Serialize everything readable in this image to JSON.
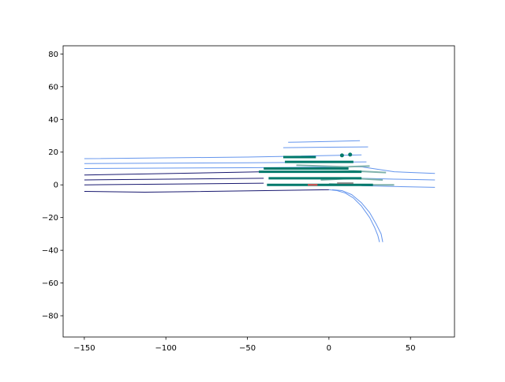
{
  "chart_data": {
    "type": "line",
    "xlim": [
      -163,
      77
    ],
    "ylim": [
      -93,
      85
    ],
    "xticks": [
      {
        "value": -150,
        "label": "−150"
      },
      {
        "value": -100,
        "label": "−100"
      },
      {
        "value": -50,
        "label": "−50"
      },
      0,
      50
    ],
    "yticks": [
      {
        "value": -80,
        "label": "−80"
      },
      {
        "value": -60,
        "label": "−60"
      },
      {
        "value": -40,
        "label": "−40"
      },
      {
        "value": -20,
        "label": "−20"
      },
      0,
      20,
      40,
      60,
      80
    ],
    "series": [
      {
        "color": "#6495ed",
        "width": 1,
        "x": [
          -150,
          -50,
          20
        ],
        "values": [
          16,
          17,
          18.3
        ]
      },
      {
        "color": "#6495ed",
        "width": 1,
        "x": [
          -25,
          0,
          19
        ],
        "values": [
          26,
          26.5,
          27
        ]
      },
      {
        "color": "#6495ed",
        "width": 1,
        "x": [
          -28,
          0,
          24
        ],
        "values": [
          22.7,
          23,
          23.2
        ]
      },
      {
        "color": "#6495ed",
        "width": 1,
        "x": [
          -150,
          -50,
          23
        ],
        "values": [
          13,
          13.5,
          14
        ]
      },
      {
        "color": "#6495ed",
        "width": 1,
        "x": [
          -150,
          -50,
          20,
          40,
          65
        ],
        "values": [
          10,
          10.5,
          11,
          8,
          7
        ]
      },
      {
        "color": "#6495ed",
        "width": 1,
        "x": [
          20,
          40,
          65
        ],
        "values": [
          4,
          3.5,
          3
        ]
      },
      {
        "color": "#6495ed",
        "width": 1,
        "x": [
          20,
          40,
          65
        ],
        "values": [
          -0.5,
          -1,
          -1.5
        ]
      },
      {
        "color": "#6495ed",
        "width": 1,
        "x": [
          0,
          5,
          10,
          15,
          20,
          25,
          28,
          30,
          31
        ],
        "values": [
          -3,
          -3.5,
          -5,
          -8,
          -13,
          -20,
          -26,
          -31,
          -35
        ]
      },
      {
        "color": "#6495ed",
        "width": 1,
        "x": [
          2,
          8,
          14,
          20,
          25,
          29,
          32,
          33
        ],
        "values": [
          -3,
          -3.5,
          -6,
          -11,
          -17,
          -24,
          -30,
          -35
        ]
      },
      {
        "color": "#191970",
        "width": 1,
        "x": [
          -150,
          -40
        ],
        "values": [
          6,
          8
        ]
      },
      {
        "color": "#191970",
        "width": 1,
        "x": [
          -150,
          -40
        ],
        "values": [
          3,
          4
        ]
      },
      {
        "color": "#191970",
        "width": 1,
        "x": [
          -150,
          -40
        ],
        "values": [
          0,
          1
        ]
      },
      {
        "color": "#191970",
        "width": 1,
        "x": [
          -150,
          -113,
          0
        ],
        "values": [
          -4,
          -4.5,
          -3
        ]
      },
      {
        "color": "#80b2ac",
        "width": 2,
        "x": [
          -10,
          15,
          35
        ],
        "values": [
          8,
          8.5,
          7.5
        ]
      },
      {
        "color": "#80b2ac",
        "width": 2,
        "x": [
          -5,
          15,
          33
        ],
        "values": [
          3,
          4,
          3
        ]
      },
      {
        "color": "#80b2ac",
        "width": 2,
        "x": [
          0,
          20,
          40
        ],
        "values": [
          0.5,
          0,
          0
        ]
      },
      {
        "color": "#80b2ac",
        "width": 2,
        "x": [
          -20,
          10,
          25
        ],
        "values": [
          12,
          11,
          11.5
        ]
      },
      {
        "color": "#00796b",
        "width": 3,
        "x": [
          -28,
          -8
        ],
        "values": [
          17,
          17
        ]
      },
      {
        "color": "#00796b",
        "width": 3,
        "x": [
          -27,
          15
        ],
        "values": [
          14,
          14
        ]
      },
      {
        "color": "#00796b",
        "width": 3,
        "x": [
          -40,
          12
        ],
        "values": [
          10,
          10
        ]
      },
      {
        "color": "#00796b",
        "width": 3,
        "x": [
          -43,
          20
        ],
        "values": [
          8,
          8
        ]
      },
      {
        "color": "#00796b",
        "width": 3,
        "x": [
          -37,
          20
        ],
        "values": [
          4,
          4
        ]
      },
      {
        "color": "#00796b",
        "width": 3,
        "x": [
          -38,
          27
        ],
        "values": [
          0,
          0
        ]
      },
      {
        "color": "#e05050",
        "width": 2,
        "x": [
          -13,
          -7
        ],
        "values": [
          0,
          0
        ]
      },
      {
        "color": "#808080",
        "width": 2,
        "x": [
          5,
          15
        ],
        "values": [
          1,
          1
        ]
      },
      {
        "color": "#00796b",
        "mode": "markers",
        "x": [
          8,
          13
        ],
        "values": [
          18,
          18.5
        ]
      }
    ]
  }
}
